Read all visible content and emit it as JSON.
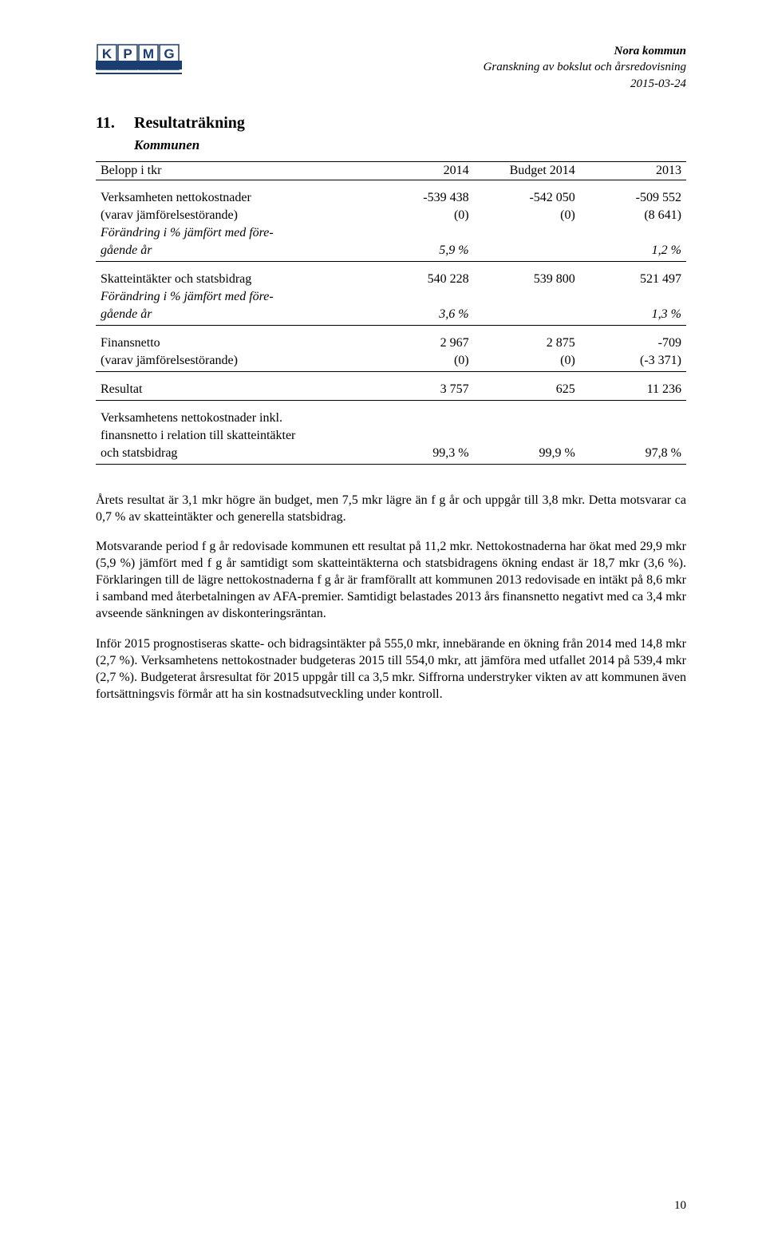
{
  "header": {
    "org_bold": "Nora kommun",
    "subtitle": "Granskning av bokslut och årsredovisning",
    "date": "2015-03-24"
  },
  "logo": {
    "name": "kpmg-logo",
    "letters": [
      "K",
      "P",
      "M",
      "G"
    ],
    "box_fill": "#ffffff",
    "box_stroke": "#1a3e6f",
    "letter_fill": "#1a3e6f",
    "bar_fill": "#1a3e6f"
  },
  "section": {
    "number": "11.",
    "title": "Resultaträkning",
    "subtitle": "Kommunen"
  },
  "table": {
    "col_headers": [
      "Belopp i tkr",
      "2014",
      "Budget 2014",
      "2013"
    ],
    "groups": [
      {
        "rows": [
          {
            "label": "Verksamheten nettokostnader",
            "c1": "-539 438",
            "c2": "-542 050",
            "c3": "-509 552",
            "italic": false
          },
          {
            "label": "(varav jämförelsestörande)",
            "c1": "(0)",
            "c2": "(0)",
            "c3": "(8 641)",
            "italic": false
          },
          {
            "label": "Förändring i % jämfört med före-",
            "c1": "",
            "c2": "",
            "c3": "",
            "italic": true
          },
          {
            "label": "gående år",
            "c1": "5,9 %",
            "c2": "",
            "c3": "1,2 %",
            "italic": true
          }
        ]
      },
      {
        "rows": [
          {
            "label": "Skatteintäkter och statsbidrag",
            "c1": "540 228",
            "c2": "539 800",
            "c3": "521 497",
            "italic": false
          },
          {
            "label": "Förändring i % jämfört med före-",
            "c1": "",
            "c2": "",
            "c3": "",
            "italic": true
          },
          {
            "label": "gående år",
            "c1": "3,6 %",
            "c2": "",
            "c3": "1,3 %",
            "italic": true
          }
        ]
      },
      {
        "rows": [
          {
            "label": "Finansnetto",
            "c1": "2 967",
            "c2": "2 875",
            "c3": "-709",
            "italic": false
          },
          {
            "label": "(varav jämförelsestörande)",
            "c1": "(0)",
            "c2": "(0)",
            "c3": "(-3 371)",
            "italic": false
          }
        ]
      },
      {
        "rows": [
          {
            "label": "Resultat",
            "c1": "3 757",
            "c2": "625",
            "c3": "11 236",
            "italic": false
          }
        ]
      },
      {
        "rows": [
          {
            "label": "Verksamhetens nettokostnader inkl.",
            "c1": "",
            "c2": "",
            "c3": "",
            "italic": false
          },
          {
            "label": "finansnetto i relation till skatteintäkter",
            "c1": "",
            "c2": "",
            "c3": "",
            "italic": false
          },
          {
            "label": "och statsbidrag",
            "c1": "99,3 %",
            "c2": "99,9 %",
            "c3": "97,8 %",
            "italic": false
          }
        ]
      }
    ]
  },
  "paragraphs": [
    "Årets resultat är 3,1 mkr högre än budget, men 7,5 mkr lägre än f g år och uppgår till 3,8 mkr. Detta motsvarar ca 0,7 % av skatteintäkter och generella statsbidrag.",
    "Motsvarande period f g år redovisade kommunen ett resultat på 11,2 mkr. Nettokostnaderna har ökat med 29,9 mkr (5,9 %) jämfört med f g år samtidigt som skatteintäkterna och statsbidragens ökning endast är 18,7 mkr (3,6 %). Förklaringen till de lägre nettokostnaderna f g år är framförallt att kommunen 2013 redovisade en intäkt på 8,6 mkr i samband med återbetalningen av AFA-premier. Samtidigt belastades 2013 års finansnetto negativt med ca 3,4 mkr avseende sänkningen av diskonteringsräntan.",
    "Inför 2015 prognostiseras skatte- och bidragsintäkter på 555,0 mkr, innebärande en ökning från 2014 med 14,8 mkr (2,7 %). Verksamhetens nettokostnader budgeteras 2015 till 554,0 mkr, att jämföra med utfallet 2014 på 539,4 mkr (2,7 %). Budgeterat årsresultat för 2015 uppgår till ca 3,5 mkr. Siffrorna understryker vikten av att kommunen även fortsättningsvis förmår att ha sin kostnadsutveckling under kontroll."
  ],
  "page_number": "10"
}
